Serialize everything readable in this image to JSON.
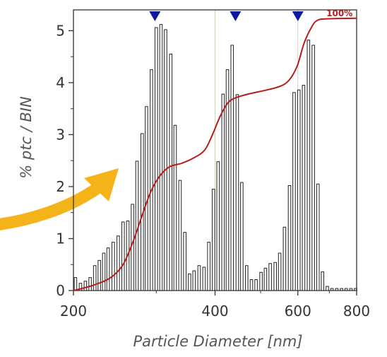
{
  "chart_data": {
    "type": "bar",
    "xlabel": "Particle Diameter [nm]",
    "ylabel": "% ptc / BIN",
    "x_scale": "log",
    "xlim": [
      200,
      800
    ],
    "ylim": [
      0,
      5.4
    ],
    "x_ticks": [
      200,
      400,
      600,
      800
    ],
    "x_tick_labels": [
      "200",
      "400",
      "600",
      "800"
    ],
    "y_ticks": [
      0,
      1,
      2,
      3,
      4,
      5
    ],
    "y_tick_labels": [
      "0",
      "1",
      "2",
      "3",
      "4",
      "5"
    ],
    "grid_x": [
      400,
      600
    ],
    "series": [
      {
        "kind": "histogram",
        "bin_width_log": 0.00536,
        "bins": [
          {
            "x": 202,
            "y": 0.25
          },
          {
            "x": 207,
            "y": 0.14
          },
          {
            "x": 212,
            "y": 0.18
          },
          {
            "x": 217,
            "y": 0.25
          },
          {
            "x": 222,
            "y": 0.48
          },
          {
            "x": 227,
            "y": 0.58
          },
          {
            "x": 232,
            "y": 0.72
          },
          {
            "x": 237,
            "y": 0.82
          },
          {
            "x": 243,
            "y": 0.93
          },
          {
            "x": 249,
            "y": 1.05
          },
          {
            "x": 255,
            "y": 1.32
          },
          {
            "x": 261,
            "y": 1.34
          },
          {
            "x": 267,
            "y": 1.66
          },
          {
            "x": 273,
            "y": 2.49
          },
          {
            "x": 280,
            "y": 3.02
          },
          {
            "x": 286,
            "y": 3.54
          },
          {
            "x": 293,
            "y": 4.25
          },
          {
            "x": 300,
            "y": 5.06
          },
          {
            "x": 307,
            "y": 5.12
          },
          {
            "x": 314,
            "y": 5.02
          },
          {
            "x": 322,
            "y": 4.55
          },
          {
            "x": 329,
            "y": 3.18
          },
          {
            "x": 337,
            "y": 2.12
          },
          {
            "x": 345,
            "y": 1.12
          },
          {
            "x": 353,
            "y": 0.32
          },
          {
            "x": 361,
            "y": 0.38
          },
          {
            "x": 370,
            "y": 0.48
          },
          {
            "x": 379,
            "y": 0.45
          },
          {
            "x": 388,
            "y": 0.93
          },
          {
            "x": 397,
            "y": 1.95
          },
          {
            "x": 406,
            "y": 2.48
          },
          {
            "x": 416,
            "y": 3.78
          },
          {
            "x": 425,
            "y": 4.25
          },
          {
            "x": 435,
            "y": 4.72
          },
          {
            "x": 446,
            "y": 3.77
          },
          {
            "x": 456,
            "y": 2.08
          },
          {
            "x": 467,
            "y": 0.48
          },
          {
            "x": 478,
            "y": 0.21
          },
          {
            "x": 489,
            "y": 0.21
          },
          {
            "x": 501,
            "y": 0.35
          },
          {
            "x": 512,
            "y": 0.43
          },
          {
            "x": 524,
            "y": 0.52
          },
          {
            "x": 537,
            "y": 0.54
          },
          {
            "x": 549,
            "y": 0.72
          },
          {
            "x": 562,
            "y": 1.22
          },
          {
            "x": 576,
            "y": 2.02
          },
          {
            "x": 589,
            "y": 3.81
          },
          {
            "x": 603,
            "y": 3.86
          },
          {
            "x": 617,
            "y": 3.95
          },
          {
            "x": 632,
            "y": 4.82
          },
          {
            "x": 647,
            "y": 4.72
          },
          {
            "x": 662,
            "y": 2.05
          },
          {
            "x": 677,
            "y": 0.36
          },
          {
            "x": 693,
            "y": 0.08
          },
          {
            "x": 709,
            "y": 0.04
          },
          {
            "x": 726,
            "y": 0.04
          },
          {
            "x": 743,
            "y": 0.04
          },
          {
            "x": 760,
            "y": 0.04
          },
          {
            "x": 778,
            "y": 0.04
          },
          {
            "x": 796,
            "y": 0.04
          }
        ]
      },
      {
        "kind": "cumulative-line",
        "color": "#b71c1c",
        "end_label": "100%",
        "points": [
          [
            200,
            0.0
          ],
          [
            220,
            0.1
          ],
          [
            240,
            0.25
          ],
          [
            255,
            0.5
          ],
          [
            268,
            0.95
          ],
          [
            280,
            1.45
          ],
          [
            292,
            1.9
          ],
          [
            305,
            2.2
          ],
          [
            320,
            2.38
          ],
          [
            340,
            2.45
          ],
          [
            360,
            2.55
          ],
          [
            380,
            2.7
          ],
          [
            395,
            3.0
          ],
          [
            410,
            3.35
          ],
          [
            425,
            3.6
          ],
          [
            440,
            3.7
          ],
          [
            470,
            3.78
          ],
          [
            510,
            3.85
          ],
          [
            550,
            3.93
          ],
          [
            575,
            4.05
          ],
          [
            598,
            4.32
          ],
          [
            618,
            4.75
          ],
          [
            640,
            5.05
          ],
          [
            660,
            5.2
          ],
          [
            700,
            5.23
          ],
          [
            800,
            5.24
          ]
        ]
      }
    ],
    "peak_markers": [
      {
        "x": 298,
        "color": "#0d1a9c"
      },
      {
        "x": 442,
        "color": "#0d1a9c"
      },
      {
        "x": 600,
        "color": "#0d1a9c"
      }
    ],
    "annotation_arrow": {
      "color": "#f5b31a",
      "shape": "curved-arrow"
    }
  }
}
